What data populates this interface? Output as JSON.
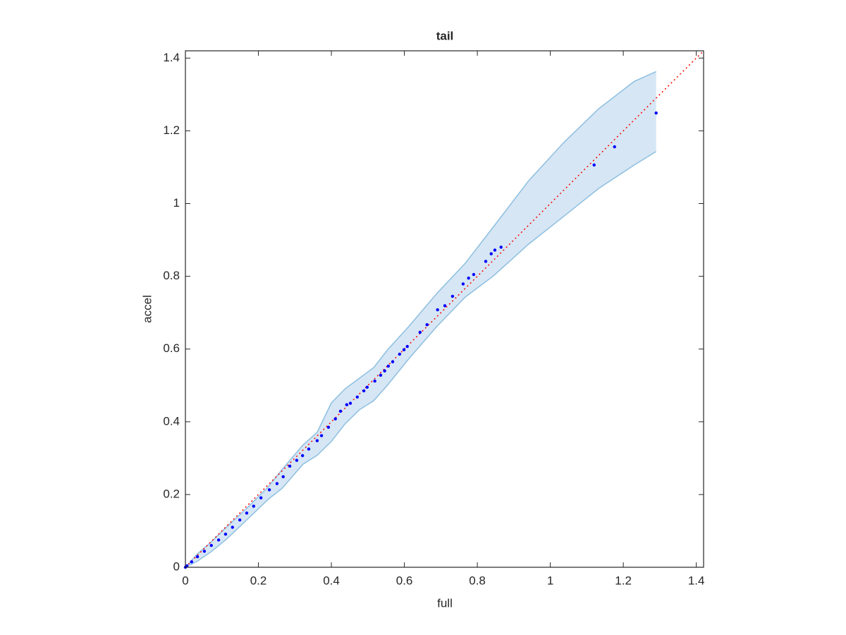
{
  "chart_data": {
    "type": "scatter",
    "title": "tail",
    "x_label": "full",
    "y_label": "accel",
    "xlim": [
      0,
      1.42
    ],
    "ylim": [
      0,
      1.42
    ],
    "xticks": [
      0,
      0.2,
      0.4,
      0.6,
      0.8,
      1,
      1.2,
      1.4
    ],
    "yticks": [
      0,
      0.2,
      0.4,
      0.6,
      0.8,
      1,
      1.2,
      1.4
    ],
    "band": {
      "color": "#d6e6f4",
      "edge_color": "#8dbfe0",
      "x": [
        0,
        0.033,
        0.071,
        0.11,
        0.168,
        0.226,
        0.265,
        0.322,
        0.361,
        0.4,
        0.438,
        0.477,
        0.516,
        0.554,
        0.612,
        0.689,
        0.767,
        0.844,
        0.94,
        1.037,
        1.133,
        1.23,
        1.29
      ],
      "upper": [
        0,
        0.037,
        0.07,
        0.108,
        0.162,
        0.22,
        0.269,
        0.336,
        0.371,
        0.452,
        0.491,
        0.52,
        0.549,
        0.598,
        0.662,
        0.753,
        0.836,
        0.936,
        1.062,
        1.168,
        1.261,
        1.336,
        1.363
      ],
      "lower": [
        0,
        0.017,
        0.043,
        0.075,
        0.13,
        0.186,
        0.217,
        0.283,
        0.308,
        0.346,
        0.395,
        0.433,
        0.458,
        0.501,
        0.573,
        0.662,
        0.743,
        0.801,
        0.888,
        0.965,
        1.042,
        1.106,
        1.143
      ]
    },
    "reference_line": {
      "color": "#ff0000",
      "x": [
        0,
        1.42
      ],
      "y": [
        0,
        1.42
      ]
    },
    "series": [
      {
        "color": "#0000ff",
        "x": [
          0,
          0.004,
          0.017,
          0.033,
          0.052,
          0.071,
          0.091,
          0.11,
          0.129,
          0.149,
          0.168,
          0.187,
          0.207,
          0.23,
          0.251,
          0.268,
          0.286,
          0.305,
          0.321,
          0.338,
          0.361,
          0.373,
          0.392,
          0.411,
          0.425,
          0.442,
          0.452,
          0.471,
          0.489,
          0.498,
          0.519,
          0.535,
          0.546,
          0.556,
          0.568,
          0.587,
          0.599,
          0.608,
          0.643,
          0.662,
          0.691,
          0.711,
          0.732,
          0.761,
          0.776,
          0.79,
          0.823,
          0.838,
          0.848,
          0.865,
          1.12,
          1.176,
          1.29
        ],
        "values": [
          0,
          0.004,
          0.015,
          0.029,
          0.044,
          0.06,
          0.075,
          0.091,
          0.11,
          0.13,
          0.149,
          0.168,
          0.191,
          0.213,
          0.23,
          0.249,
          0.278,
          0.294,
          0.307,
          0.325,
          0.348,
          0.362,
          0.385,
          0.408,
          0.429,
          0.447,
          0.451,
          0.468,
          0.485,
          0.495,
          0.512,
          0.528,
          0.54,
          0.553,
          0.565,
          0.586,
          0.598,
          0.607,
          0.646,
          0.667,
          0.708,
          0.719,
          0.745,
          0.779,
          0.795,
          0.805,
          0.841,
          0.862,
          0.872,
          0.88,
          1.106,
          1.156,
          1.249
        ]
      }
    ]
  }
}
